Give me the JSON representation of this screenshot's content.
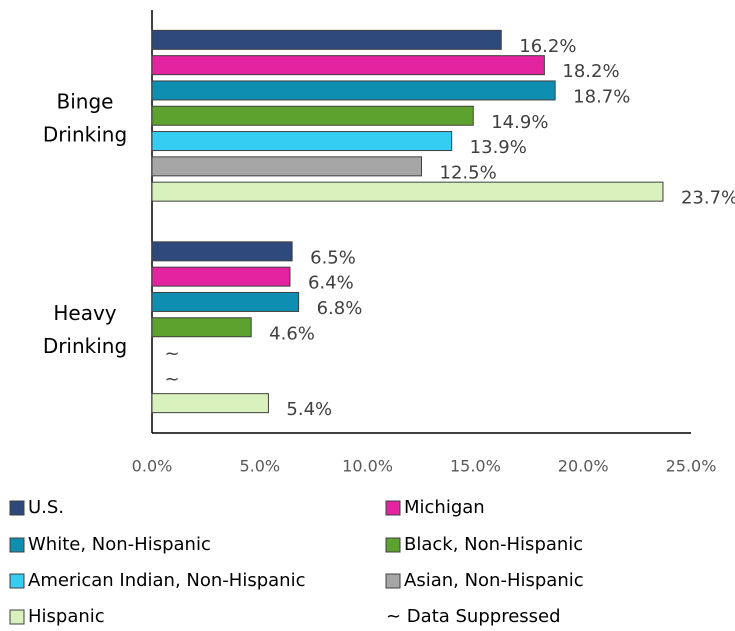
{
  "chart_data": {
    "type": "barh",
    "categories": [
      [
        "Binge",
        "Drinking"
      ],
      [
        "Heavy",
        "Drinking"
      ]
    ],
    "series": [
      {
        "name": "U.S.",
        "color": "#2e4a7d",
        "values": [
          16.2,
          6.5
        ],
        "value_labels": [
          "16.2%",
          "6.5%"
        ]
      },
      {
        "name": "Michigan",
        "color": "#e3239f",
        "values": [
          18.2,
          6.4
        ],
        "value_labels": [
          "18.2%",
          "6.4%"
        ]
      },
      {
        "name": "White, Non-Hispanic",
        "color": "#0e8fb2",
        "values": [
          18.7,
          6.8
        ],
        "value_labels": [
          "18.7%",
          "6.8%"
        ]
      },
      {
        "name": "Black, Non-Hispanic",
        "color": "#5da22e",
        "values": [
          14.9,
          4.6
        ],
        "value_labels": [
          "14.9%",
          "4.6%"
        ]
      },
      {
        "name": "American Indian, Non-Hispanic",
        "color": "#35cdf2",
        "values": [
          13.9,
          null
        ],
        "value_labels": [
          "13.9%",
          "~"
        ]
      },
      {
        "name": "Asian, Non-Hispanic",
        "color": "#a6a6a6",
        "values": [
          12.5,
          null
        ],
        "value_labels": [
          "12.5%",
          "~"
        ]
      },
      {
        "name": "Hispanic",
        "color": "#d8f1bd",
        "values": [
          23.7,
          5.4
        ],
        "value_labels": [
          "23.7%",
          "5.4%"
        ]
      }
    ],
    "note": "~ Data Suppressed",
    "xlim": [
      0,
      25
    ],
    "xticks": [
      {
        "value": 0,
        "label": "0.0%"
      },
      {
        "value": 5,
        "label": "5.0%"
      },
      {
        "value": 10,
        "label": "10.0%"
      },
      {
        "value": 15,
        "label": "15.0%"
      },
      {
        "value": 20,
        "label": "20.0%"
      },
      {
        "value": 25,
        "label": "25.0%"
      }
    ]
  }
}
